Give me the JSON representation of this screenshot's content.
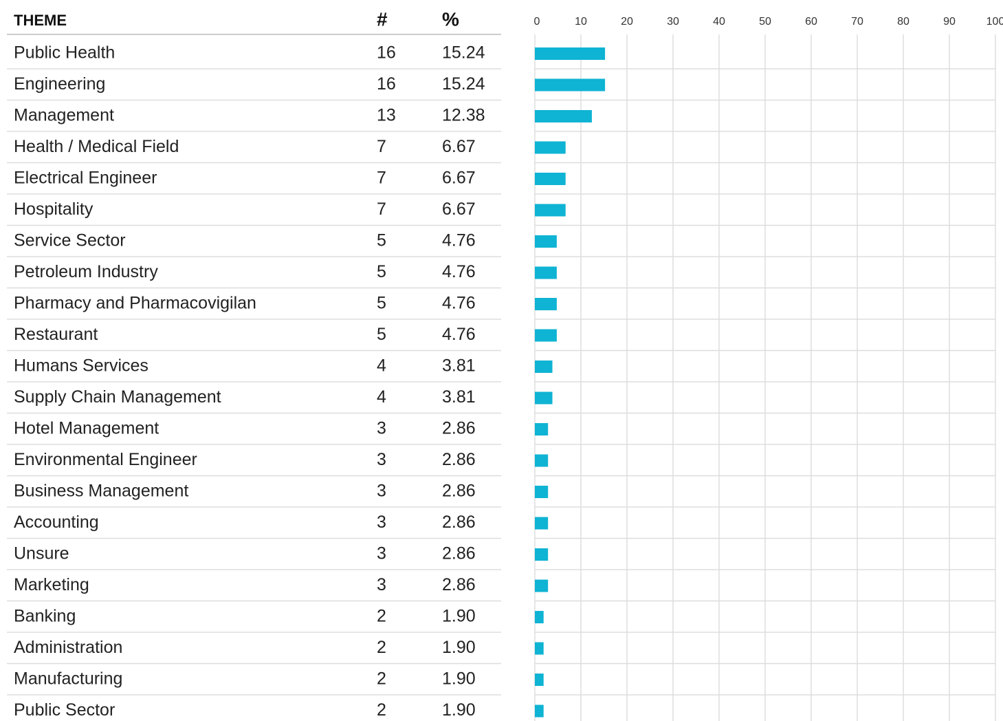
{
  "chart_data": {
    "type": "bar",
    "columns": [
      "THEME",
      "#",
      "%"
    ],
    "categories": [
      "Public Health",
      "Engineering",
      "Management",
      "Health / Medical Field",
      "Electrical Engineer",
      "Hospitality",
      "Service Sector",
      "Petroleum Industry",
      "Pharmacy and Pharmacovigilan",
      "Restaurant",
      "Humans Services",
      "Supply Chain Management",
      "Hotel Management",
      "Environmental Engineer",
      "Business Management",
      "Accounting",
      "Unsure",
      "Marketing",
      "Banking",
      "Administration",
      "Manufacturing",
      "Public Sector"
    ],
    "counts": [
      16,
      16,
      13,
      7,
      7,
      7,
      5,
      5,
      5,
      5,
      4,
      4,
      3,
      3,
      3,
      3,
      3,
      3,
      2,
      2,
      2,
      2
    ],
    "values": [
      15.24,
      15.24,
      12.38,
      6.67,
      6.67,
      6.67,
      4.76,
      4.76,
      4.76,
      4.76,
      3.81,
      3.81,
      2.86,
      2.86,
      2.86,
      2.86,
      2.86,
      2.86,
      1.9,
      1.9,
      1.9,
      1.9
    ],
    "value_labels": [
      "15.24",
      "15.24",
      "12.38",
      "6.67",
      "6.67",
      "6.67",
      "4.76",
      "4.76",
      "4.76",
      "4.76",
      "3.81",
      "3.81",
      "2.86",
      "2.86",
      "2.86",
      "2.86",
      "2.86",
      "2.86",
      "1.90",
      "1.90",
      "1.90",
      "1.90"
    ],
    "color": "#0fb3d3",
    "xlim": [
      0,
      100
    ],
    "xticks": [
      0,
      10,
      20,
      30,
      40,
      50,
      60,
      70,
      80,
      90,
      100
    ],
    "grid": true
  }
}
